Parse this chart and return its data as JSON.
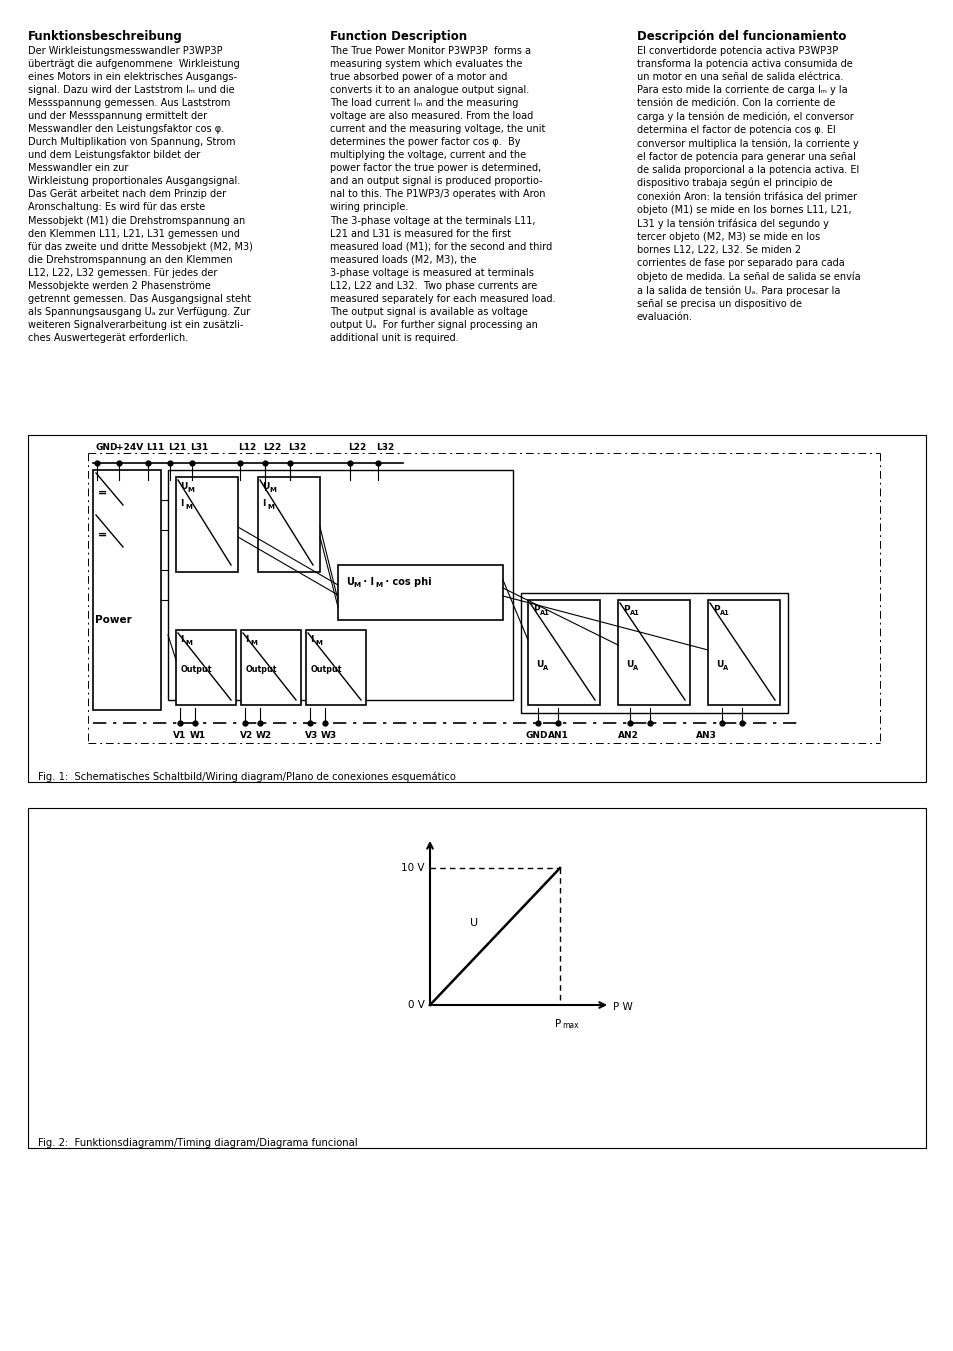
{
  "bg_color": "#ffffff",
  "fig1_caption": "Fig. 1:  Schematisches Schaltbild/Wiring diagram/Plano de conexiones esquemático",
  "fig2_caption": "Fig. 2:  Funktionsdiagramm/Timing diagram/Diagrama funcional",
  "col1_title": "Funktionsbeschreibung",
  "col2_title": "Function Description",
  "col3_title": "Descripción del funcionamiento"
}
